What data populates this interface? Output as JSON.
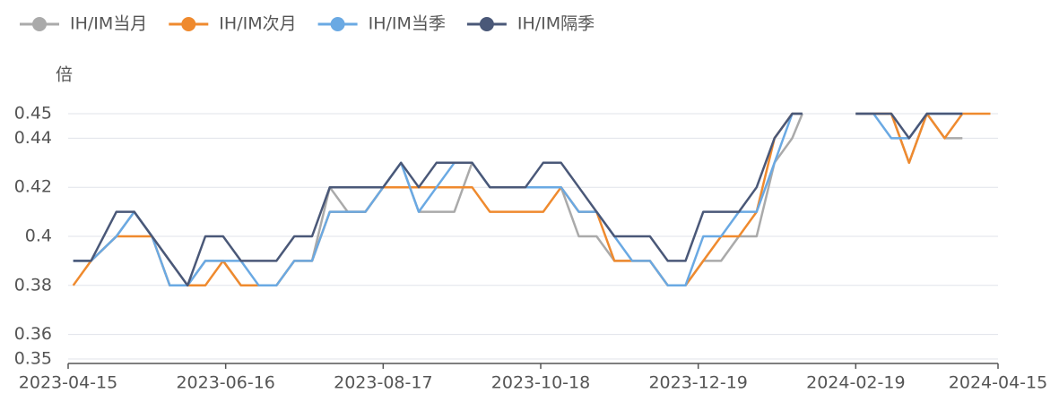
{
  "chart_data": {
    "type": "line",
    "y_label": "倍",
    "x": [
      "2023-04-17",
      "2023-04-24",
      "2023-05-04",
      "2023-05-11",
      "2023-05-18",
      "2023-05-25",
      "2023-06-01",
      "2023-06-08",
      "2023-06-15",
      "2023-06-22",
      "2023-06-29",
      "2023-07-06",
      "2023-07-13",
      "2023-07-20",
      "2023-07-27",
      "2023-08-03",
      "2023-08-10",
      "2023-08-17",
      "2023-08-24",
      "2023-08-31",
      "2023-09-07",
      "2023-09-14",
      "2023-09-21",
      "2023-09-28",
      "2023-10-12",
      "2023-10-19",
      "2023-10-26",
      "2023-11-02",
      "2023-11-09",
      "2023-11-16",
      "2023-11-23",
      "2023-11-30",
      "2023-12-07",
      "2023-12-14",
      "2023-12-21",
      "2023-12-28",
      "2024-01-04",
      "2024-01-11",
      "2024-01-18",
      "2024-01-25",
      "2024-01-29",
      "2024-02-05",
      "2024-02-19",
      "2024-02-26",
      "2024-03-04",
      "2024-03-11",
      "2024-03-18",
      "2024-03-25",
      "2024-04-01",
      "2024-04-12"
    ],
    "series": [
      {
        "name": "IH/IM当月",
        "color": "#aaaaaa",
        "values": [
          0.39,
          0.39,
          0.4,
          0.41,
          0.4,
          0.39,
          0.38,
          0.39,
          0.39,
          0.38,
          0.38,
          0.38,
          0.39,
          0.39,
          0.42,
          0.41,
          0.41,
          0.42,
          0.43,
          0.41,
          0.41,
          0.41,
          0.43,
          0.42,
          0.42,
          0.42,
          0.42,
          0.4,
          0.4,
          0.39,
          0.39,
          0.39,
          0.38,
          0.38,
          0.39,
          0.39,
          0.4,
          0.4,
          0.43,
          0.44,
          0.45,
          null,
          0.45,
          0.45,
          0.45,
          0.43,
          0.45,
          0.44,
          0.44,
          null
        ]
      },
      {
        "name": "IH/IM次月",
        "color": "#ef8a2e",
        "values": [
          0.38,
          0.39,
          0.4,
          0.4,
          0.4,
          0.38,
          0.38,
          0.38,
          0.39,
          0.38,
          0.38,
          0.38,
          0.39,
          0.39,
          0.41,
          0.41,
          0.41,
          0.42,
          0.42,
          0.42,
          0.42,
          0.42,
          0.42,
          0.41,
          0.41,
          0.41,
          0.42,
          0.41,
          0.41,
          0.39,
          0.39,
          0.39,
          0.38,
          0.38,
          0.39,
          0.4,
          0.4,
          0.41,
          0.44,
          0.45,
          0.45,
          null,
          0.45,
          0.45,
          0.45,
          0.43,
          0.45,
          0.44,
          0.45,
          0.45
        ]
      },
      {
        "name": "IH/IM当季",
        "color": "#6aa9e3",
        "values": [
          0.39,
          0.39,
          0.4,
          0.41,
          0.4,
          0.38,
          0.38,
          0.39,
          0.39,
          0.39,
          0.38,
          0.38,
          0.39,
          0.39,
          0.41,
          0.41,
          0.41,
          0.42,
          0.43,
          0.41,
          0.42,
          0.43,
          0.43,
          0.42,
          0.42,
          0.42,
          0.42,
          0.41,
          0.41,
          0.4,
          0.39,
          0.39,
          0.38,
          0.38,
          0.4,
          0.4,
          0.41,
          0.41,
          0.43,
          0.45,
          0.45,
          null,
          0.45,
          0.45,
          0.44,
          0.44,
          0.45,
          0.45,
          0.45,
          null
        ]
      },
      {
        "name": "IH/IM隔季",
        "color": "#4a5878",
        "values": [
          0.39,
          0.39,
          0.41,
          0.41,
          0.4,
          0.39,
          0.38,
          0.4,
          0.4,
          0.39,
          0.39,
          0.39,
          0.4,
          0.4,
          0.42,
          0.42,
          0.42,
          0.42,
          0.43,
          0.42,
          0.43,
          0.43,
          0.43,
          0.42,
          0.42,
          0.43,
          0.43,
          0.42,
          0.41,
          0.4,
          0.4,
          0.4,
          0.39,
          0.39,
          0.41,
          0.41,
          0.41,
          0.42,
          0.44,
          0.45,
          0.45,
          null,
          0.45,
          0.45,
          0.45,
          0.44,
          0.45,
          0.45,
          0.45,
          null
        ]
      }
    ],
    "xlim": [
      "2023-04-15",
      "2024-04-15"
    ],
    "xticks": [
      "2023-04-15",
      "2023-06-16",
      "2023-08-17",
      "2023-10-18",
      "2023-12-19",
      "2024-02-19",
      "2024-04-15"
    ],
    "ylim": [
      0.35,
      0.45
    ],
    "yticks": [
      0.35,
      0.36,
      0.38,
      0.4,
      0.42,
      0.44,
      0.45
    ],
    "grid": true
  }
}
